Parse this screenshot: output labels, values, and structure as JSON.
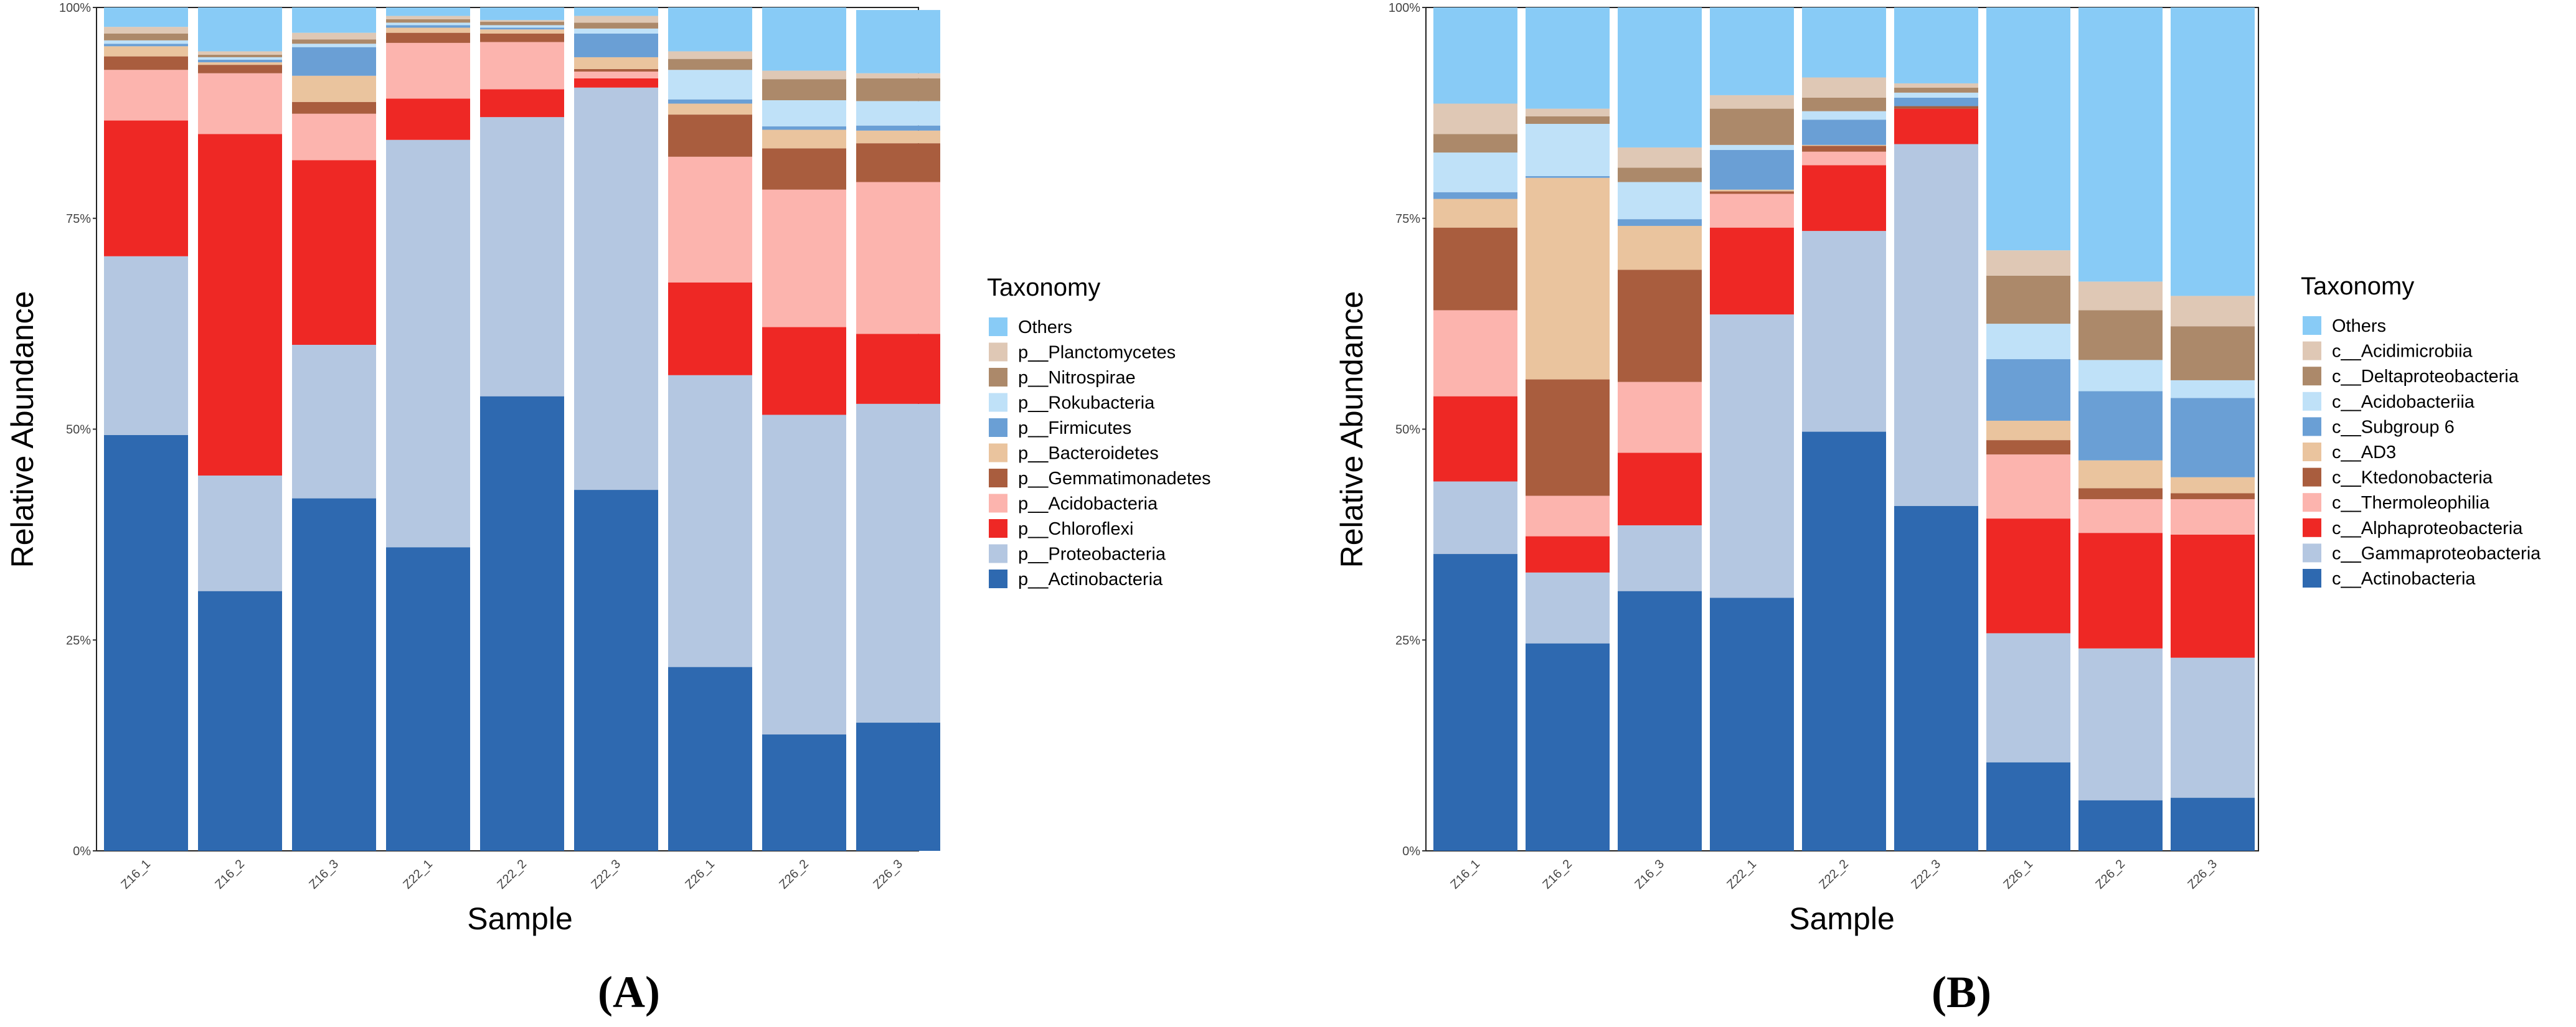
{
  "chart_data": [
    {
      "type": "bar",
      "stacked": true,
      "panel_label": "A",
      "xlabel": "Sample",
      "ylabel": "Relative Abundance",
      "ylim": [
        0,
        100
      ],
      "yticks": [
        "0%",
        "25%",
        "50%",
        "75%",
        "100%"
      ],
      "legend_title": "Taxonomy",
      "categories": [
        "Z16_1",
        "Z16_2",
        "Z16_3",
        "Z22_1",
        "Z22_2",
        "Z22_3",
        "Z26_1",
        "Z26_2",
        "Z26_3"
      ],
      "series": [
        {
          "name": "p__Actinobacteria",
          "color": "#2E69B0",
          "values": [
            49.3,
            30.8,
            41.8,
            36.0,
            53.9,
            42.8,
            21.8,
            13.8,
            15.2
          ]
        },
        {
          "name": "p__Proteobacteria",
          "color": "#B4C7E1",
          "values": [
            21.2,
            13.7,
            18.2,
            48.3,
            33.1,
            47.7,
            34.6,
            37.9,
            37.8
          ]
        },
        {
          "name": "p__Chloroflexi",
          "color": "#EE2825",
          "values": [
            16.1,
            40.5,
            21.9,
            4.9,
            3.3,
            1.1,
            11.0,
            10.4,
            8.3
          ]
        },
        {
          "name": "p__Acidobacteria",
          "color": "#FCB4AE",
          "values": [
            6.0,
            7.2,
            5.5,
            6.6,
            5.6,
            0.8,
            14.9,
            16.3,
            18.0
          ]
        },
        {
          "name": "p__Gemmatimonadetes",
          "color": "#A95D3E",
          "values": [
            1.6,
            1.0,
            1.4,
            1.2,
            1.0,
            0.3,
            5.0,
            4.9,
            4.6
          ]
        },
        {
          "name": "p__Bacteroidetes",
          "color": "#EAC49E",
          "values": [
            1.2,
            0.3,
            3.1,
            0.6,
            0.5,
            1.4,
            1.3,
            2.2,
            1.5
          ]
        },
        {
          "name": "p__Firmicutes",
          "color": "#6A9FD5",
          "values": [
            0.3,
            0.3,
            3.4,
            0.3,
            0.2,
            2.8,
            0.5,
            0.4,
            0.6
          ]
        },
        {
          "name": "p__Rokubacteria",
          "color": "#BFE1F8",
          "values": [
            0.4,
            0.3,
            0.4,
            0.3,
            0.3,
            0.6,
            3.5,
            3.1,
            2.9
          ]
        },
        {
          "name": "p__Nitrospirae",
          "color": "#AC896A",
          "values": [
            0.8,
            0.3,
            0.5,
            0.4,
            0.4,
            0.7,
            1.3,
            2.5,
            2.7
          ]
        },
        {
          "name": "p__Planctomycetes",
          "color": "#DFC8B5",
          "values": [
            0.8,
            0.4,
            0.8,
            0.4,
            0.2,
            0.8,
            0.9,
            1.0,
            0.6
          ]
        },
        {
          "name": "Others",
          "color": "#88CBF6",
          "values": [
            3.8,
            5.5,
            4.0,
            1.9,
            1.8,
            2.9,
            5.2,
            7.8,
            7.5
          ]
        }
      ]
    },
    {
      "type": "bar",
      "stacked": true,
      "panel_label": "B",
      "xlabel": "Sample",
      "ylabel": "Relative Abundance",
      "ylim": [
        0,
        100
      ],
      "yticks": [
        "0%",
        "25%",
        "50%",
        "75%",
        "100%"
      ],
      "legend_title": "Taxonomy",
      "categories": [
        "Z16_1",
        "Z16_2",
        "Z16_3",
        "Z22_1",
        "Z22_2",
        "Z22_3",
        "Z26_1",
        "Z26_2",
        "Z26_3"
      ],
      "series": [
        {
          "name": "c__Actinobacteria",
          "color": "#2E69B0",
          "values": [
            35.2,
            24.6,
            30.8,
            30.0,
            49.7,
            40.9,
            10.5,
            6.0,
            6.3
          ]
        },
        {
          "name": "c__Gammaproteobacteria",
          "color": "#B4C7E1",
          "values": [
            8.6,
            8.4,
            7.8,
            33.6,
            23.8,
            42.9,
            15.3,
            18.0,
            16.6
          ]
        },
        {
          "name": "c__Alphaproteobacteria",
          "color": "#EE2825",
          "values": [
            10.1,
            4.3,
            8.6,
            10.3,
            7.8,
            4.2,
            13.6,
            13.7,
            14.6
          ]
        },
        {
          "name": "c__Thermoleophilia",
          "color": "#FCB4AE",
          "values": [
            10.2,
            4.8,
            8.4,
            4.0,
            1.6,
            0.0,
            7.6,
            4.0,
            4.2
          ]
        },
        {
          "name": "c__Ktedonobacteria",
          "color": "#A95D3E",
          "values": [
            9.8,
            13.8,
            13.3,
            0.3,
            0.7,
            0.3,
            1.7,
            1.3,
            0.7
          ]
        },
        {
          "name": "c__AD3",
          "color": "#EAC49E",
          "values": [
            3.4,
            23.9,
            5.2,
            0.2,
            0.1,
            0.0,
            2.3,
            3.3,
            1.9
          ]
        },
        {
          "name": "c__Subgroup 6",
          "color": "#6A9FD5",
          "values": [
            0.8,
            0.2,
            0.8,
            4.7,
            3.0,
            1.0,
            7.3,
            8.2,
            9.4
          ]
        },
        {
          "name": "c__Acidobacteriia",
          "color": "#BFE1F8",
          "values": [
            4.7,
            6.2,
            4.4,
            0.6,
            1.0,
            0.6,
            4.2,
            3.7,
            2.1
          ]
        },
        {
          "name": "c__Deltaproteobacteria",
          "color": "#AC896A",
          "values": [
            2.2,
            0.9,
            1.7,
            4.3,
            1.6,
            0.6,
            5.7,
            5.9,
            6.4
          ]
        },
        {
          "name": "c__Acidimicrobiia",
          "color": "#DFC8B5",
          "values": [
            3.6,
            0.9,
            2.4,
            1.6,
            2.4,
            0.5,
            3.0,
            3.4,
            3.6
          ]
        },
        {
          "name": "Others",
          "color": "#88CBF6",
          "values": [
            11.4,
            12.0,
            16.6,
            10.4,
            8.3,
            9.0,
            28.8,
            32.5,
            34.2
          ]
        }
      ]
    }
  ]
}
